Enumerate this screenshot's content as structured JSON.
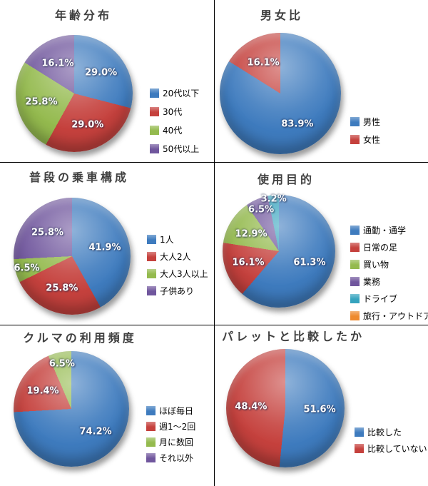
{
  "page": {
    "background": "#ffffff",
    "divider_color": "#000000"
  },
  "palette": {
    "blue": "#3E7BBE",
    "red": "#C5413D",
    "green": "#94BA4E",
    "purple": "#70569D",
    "teal": "#35A3BE",
    "orange": "#EE8A2E"
  },
  "chart_data": [
    {
      "type": "pie",
      "title": "年齢分布",
      "legend_position": "right",
      "slices": [
        {
          "label": "20代以下",
          "value": 29.0,
          "display": "29.0%",
          "color_key": "blue"
        },
        {
          "label": "30代",
          "value": 29.0,
          "display": "29.0%",
          "color_key": "red"
        },
        {
          "label": "40代",
          "value": 25.8,
          "display": "25.8%",
          "color_key": "green"
        },
        {
          "label": "50代以上",
          "value": 16.1,
          "display": "16.1%",
          "color_key": "purple"
        }
      ]
    },
    {
      "type": "pie",
      "title": "男女比",
      "legend_position": "right",
      "slices": [
        {
          "label": "男性",
          "value": 83.9,
          "display": "83.9%",
          "color_key": "blue"
        },
        {
          "label": "女性",
          "value": 16.1,
          "display": "16.1%",
          "color_key": "red"
        }
      ]
    },
    {
      "type": "pie",
      "title": "普段の乗車構成",
      "legend_position": "right",
      "slices": [
        {
          "label": "1人",
          "value": 41.9,
          "display": "41.9%",
          "color_key": "blue"
        },
        {
          "label": "大人2人",
          "value": 25.8,
          "display": "25.8%",
          "color_key": "red"
        },
        {
          "label": "大人3人以上",
          "value": 6.5,
          "display": "6.5%",
          "color_key": "green"
        },
        {
          "label": "子供あり",
          "value": 25.8,
          "display": "25.8%",
          "color_key": "purple"
        }
      ]
    },
    {
      "type": "pie",
      "title": "使用目的",
      "legend_position": "right",
      "slices": [
        {
          "label": "通勤・通学",
          "value": 61.3,
          "display": "61.3%",
          "color_key": "blue"
        },
        {
          "label": "日常の足",
          "value": 16.1,
          "display": "16.1%",
          "color_key": "red"
        },
        {
          "label": "買い物",
          "value": 12.9,
          "display": "12.9%",
          "color_key": "green"
        },
        {
          "label": "業務",
          "value": 6.5,
          "display": "6.5%",
          "color_key": "purple"
        },
        {
          "label": "ドライブ",
          "value": 3.2,
          "display": "3.2%",
          "color_key": "teal"
        },
        {
          "label": "旅行・アウトドア",
          "value": 0,
          "display": "",
          "color_key": "orange"
        }
      ]
    },
    {
      "type": "pie",
      "title": "クルマの利用頻度",
      "legend_position": "right",
      "slices": [
        {
          "label": "ほぼ毎日",
          "value": 74.2,
          "display": "74.2%",
          "color_key": "blue"
        },
        {
          "label": "週1〜2回",
          "value": 19.4,
          "display": "19.4%",
          "color_key": "red"
        },
        {
          "label": "月に数回",
          "value": 6.5,
          "display": "6.5%",
          "color_key": "green"
        },
        {
          "label": "それ以外",
          "value": 0,
          "display": "",
          "color_key": "purple"
        }
      ]
    },
    {
      "type": "pie",
      "title": "パレットと比較したか",
      "legend_position": "right",
      "slices": [
        {
          "label": "比較した",
          "value": 51.6,
          "display": "51.6%",
          "color_key": "blue"
        },
        {
          "label": "比較していない",
          "value": 48.4,
          "display": "48.4%",
          "color_key": "red"
        }
      ]
    }
  ]
}
